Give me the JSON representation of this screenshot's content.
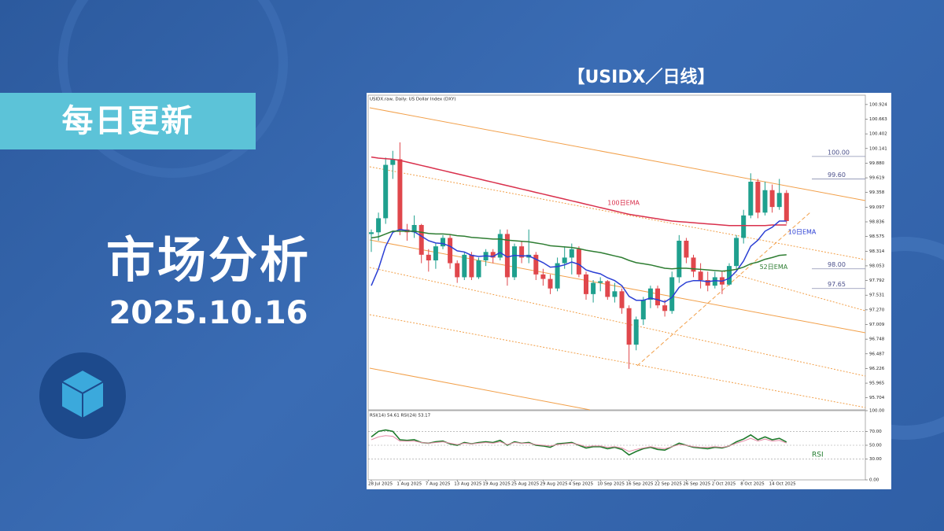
{
  "banner": {
    "tag": "每日更新",
    "headline": "市场分析",
    "date": "2025.10.16"
  },
  "chart_data": {
    "type": "candlestick",
    "title": "【USIDX／日线】",
    "subtitle": "USIDX.raw, Daily: US Dollar Index (DXY)",
    "categories": [
      "28 Jul 2025",
      null,
      null,
      null,
      "1 Aug 2025",
      null,
      null,
      null,
      "7 Aug 2025",
      null,
      null,
      null,
      "13 Aug 2025",
      null,
      null,
      null,
      "19 Aug 2025",
      null,
      null,
      null,
      "25 Aug 2025",
      null,
      null,
      null,
      "29 Aug 2025",
      null,
      null,
      null,
      "4 Sep 2025",
      null,
      null,
      null,
      "10 Sep 2025",
      null,
      null,
      null,
      "16 Sep 2025",
      null,
      null,
      null,
      "22 Sep 2025",
      null,
      null,
      null,
      "26 Sep 2025",
      null,
      null,
      null,
      "2 Oct 2025",
      null,
      null,
      null,
      "8 Oct 2025",
      null,
      null,
      null,
      "14 Oct 2025",
      null,
      null
    ],
    "open": [
      98.62,
      98.65,
      98.9,
      99.85,
      99.95,
      98.7,
      98.65,
      98.78,
      98.25,
      98.15,
      98.4,
      98.55,
      98.1,
      97.85,
      98.25,
      97.85,
      98.15,
      98.3,
      98.2,
      98.62,
      97.85,
      98.4,
      98.2,
      98.25,
      97.9,
      97.82,
      97.65,
      98.1,
      98.2,
      98.35,
      97.9,
      97.55,
      97.75,
      97.78,
      97.5,
      97.6,
      97.3,
      96.65,
      97.1,
      97.45,
      97.65,
      97.35,
      97.25,
      97.85,
      98.5,
      98.2,
      97.95,
      97.8,
      97.7,
      97.85,
      97.72,
      98.05,
      98.55,
      98.95,
      99.55,
      99.0,
      99.4,
      99.1,
      99.35
    ],
    "high": [
      98.7,
      99.0,
      99.98,
      100.1,
      100.25,
      98.8,
      98.95,
      98.8,
      98.35,
      98.45,
      98.6,
      98.6,
      98.15,
      98.3,
      98.3,
      98.2,
      98.35,
      98.35,
      98.7,
      98.7,
      98.45,
      98.5,
      98.7,
      98.3,
      98.0,
      97.9,
      98.2,
      98.4,
      98.45,
      98.4,
      97.95,
      97.8,
      97.85,
      97.8,
      97.75,
      97.65,
      97.35,
      97.15,
      97.5,
      97.7,
      97.7,
      97.45,
      97.95,
      98.6,
      98.55,
      98.25,
      98.1,
      97.95,
      97.95,
      97.95,
      98.1,
      98.6,
      99.05,
      99.7,
      99.6,
      99.55,
      99.5,
      99.6,
      99.4
    ],
    "low": [
      98.3,
      98.5,
      98.8,
      99.6,
      98.6,
      98.5,
      98.55,
      98.1,
      97.95,
      98.0,
      98.35,
      98.0,
      97.75,
      97.8,
      97.8,
      97.82,
      98.05,
      98.1,
      98.15,
      97.7,
      97.8,
      98.1,
      98.1,
      97.8,
      97.7,
      97.55,
      97.6,
      98.0,
      97.9,
      97.85,
      97.45,
      97.4,
      97.6,
      97.45,
      97.4,
      97.2,
      96.22,
      96.55,
      97.0,
      97.3,
      97.3,
      97.15,
      97.2,
      97.75,
      98.1,
      97.85,
      97.65,
      97.6,
      97.65,
      97.55,
      97.7,
      98.0,
      98.45,
      98.9,
      98.9,
      98.95,
      99.0,
      99.05,
      98.8
    ],
    "close": [
      98.65,
      98.9,
      99.85,
      99.95,
      98.7,
      98.65,
      98.78,
      98.25,
      98.15,
      98.4,
      98.55,
      98.1,
      97.85,
      98.25,
      97.85,
      98.15,
      98.3,
      98.2,
      98.62,
      97.85,
      98.4,
      98.2,
      98.25,
      97.9,
      97.82,
      97.65,
      98.1,
      98.2,
      98.35,
      97.9,
      97.55,
      97.75,
      97.78,
      97.5,
      97.6,
      97.3,
      96.65,
      97.1,
      97.45,
      97.65,
      97.35,
      97.25,
      97.85,
      98.5,
      98.2,
      97.95,
      97.8,
      97.7,
      97.85,
      97.72,
      98.05,
      98.55,
      98.95,
      99.55,
      99.0,
      99.4,
      99.1,
      99.35,
      98.85
    ],
    "up_color": "#1fa08e",
    "down_color": "#e0474c",
    "ylim": [
      95.49,
      101.09
    ],
    "yticks": [
      100.924,
      100.663,
      100.402,
      100.141,
      {
        "value": 99.88,
        "label": "99.880"
      },
      99.619,
      99.358,
      99.097,
      98.836,
      98.575,
      98.314,
      98.053,
      97.792,
      97.531,
      {
        "value": 97.27,
        "label": "97.270"
      },
      97.009,
      96.748,
      96.487,
      96.226,
      95.965,
      95.704
    ],
    "series": [
      {
        "name": "100日EMA",
        "color": "#d9304c",
        "values": [
          99.99,
          99.97,
          99.96,
          99.95,
          99.93,
          99.9,
          99.87,
          99.84,
          99.81,
          99.78,
          99.75,
          99.72,
          99.69,
          99.66,
          99.63,
          99.6,
          99.57,
          99.54,
          99.51,
          99.48,
          99.45,
          99.42,
          99.39,
          99.36,
          99.33,
          99.3,
          99.27,
          99.24,
          99.21,
          99.18,
          99.15,
          99.12,
          99.09,
          99.06,
          99.03,
          99.0,
          98.97,
          98.95,
          98.93,
          98.91,
          98.89,
          98.87,
          98.85,
          98.84,
          98.83,
          98.82,
          98.81,
          98.8,
          98.79,
          98.78,
          98.77,
          98.77,
          98.77,
          98.77,
          98.77,
          98.77,
          98.78,
          98.78,
          98.78
        ]
      },
      {
        "name": "10日EMA",
        "color": "#2b3fd4",
        "values": [
          97.7,
          98.0,
          98.4,
          98.65,
          98.7,
          98.68,
          98.66,
          98.58,
          98.5,
          98.46,
          98.45,
          98.4,
          98.32,
          98.3,
          98.24,
          98.22,
          98.23,
          98.22,
          98.29,
          98.21,
          98.24,
          98.23,
          98.23,
          98.17,
          98.11,
          98.03,
          98.04,
          98.07,
          98.12,
          98.08,
          97.98,
          97.94,
          97.91,
          97.84,
          97.79,
          97.7,
          97.51,
          97.44,
          97.44,
          97.48,
          97.45,
          97.41,
          97.49,
          97.67,
          97.76,
          97.79,
          97.79,
          97.77,
          97.79,
          97.78,
          97.83,
          97.96,
          98.14,
          98.4,
          98.51,
          98.67,
          98.74,
          98.85,
          98.85
        ]
      },
      {
        "name": "52日EMA",
        "color": "#2e7d32",
        "values": [
          98.55,
          98.57,
          98.62,
          98.67,
          98.67,
          98.67,
          98.67,
          98.65,
          98.63,
          98.62,
          98.62,
          98.61,
          98.59,
          98.58,
          98.56,
          98.55,
          98.54,
          98.53,
          98.53,
          98.51,
          98.5,
          98.49,
          98.48,
          98.46,
          98.44,
          98.41,
          98.4,
          98.39,
          98.38,
          98.36,
          98.33,
          98.31,
          98.29,
          98.26,
          98.23,
          98.2,
          98.15,
          98.11,
          98.09,
          98.07,
          98.04,
          98.01,
          98.0,
          98.01,
          98.01,
          98.0,
          97.99,
          97.98,
          97.97,
          97.96,
          97.97,
          97.99,
          98.03,
          98.09,
          98.12,
          98.17,
          98.2,
          98.24,
          98.25
        ]
      }
    ],
    "levels": [
      {
        "value": 100,
        "label": "100.00"
      },
      {
        "value": 99.6,
        "label": "99.60"
      },
      {
        "value": 98,
        "label": "98.00"
      },
      {
        "value": 97.65,
        "label": "97.65"
      }
    ],
    "rsi": {
      "label": "RSI",
      "header": "RSI(14) 54.61 RSI(24) 53.17",
      "ylim": [
        0,
        100
      ],
      "yticks": [
        {
          "value": 100,
          "label": "100.00"
        },
        {
          "value": 70,
          "label": "70.00"
        },
        {
          "value": 50,
          "label": "50.00"
        },
        {
          "value": 30,
          "label": "30.00"
        },
        {
          "value": 0,
          "label": "0.00"
        }
      ],
      "series": [
        {
          "color": "#1f7a2c",
          "values": [
            62,
            70,
            72,
            70,
            58,
            57,
            58,
            54,
            53,
            55,
            56,
            52,
            50,
            54,
            52,
            54,
            55,
            54,
            57,
            50,
            55,
            53,
            54,
            50,
            49,
            47,
            52,
            53,
            54,
            50,
            46,
            48,
            48,
            45,
            47,
            44,
            36,
            41,
            45,
            47,
            44,
            43,
            48,
            53,
            50,
            47,
            46,
            45,
            47,
            46,
            49,
            55,
            59,
            65,
            58,
            62,
            58,
            60,
            54.61
          ]
        },
        {
          "color": "#e58aa6",
          "values": [
            58,
            62,
            64,
            63,
            56,
            56,
            56,
            54,
            53,
            54,
            55,
            53,
            51,
            53,
            52,
            53,
            54,
            53,
            55,
            51,
            54,
            53,
            53,
            51,
            50,
            49,
            51,
            52,
            53,
            51,
            48,
            49,
            49,
            47,
            48,
            46,
            41,
            44,
            46,
            48,
            46,
            45,
            48,
            51,
            50,
            48,
            47,
            47,
            48,
            47,
            49,
            53,
            56,
            60,
            56,
            59,
            56,
            57,
            53.17
          ]
        }
      ]
    }
  }
}
